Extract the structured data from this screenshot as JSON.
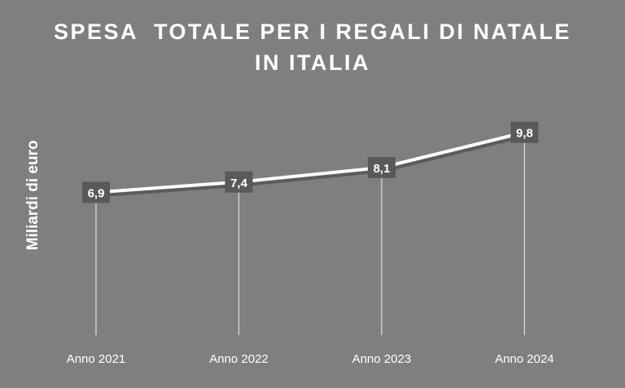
{
  "colors": {
    "background": "#7f7f7f",
    "line": "#ffffff",
    "line_shadow": "#4d4d4d",
    "label_box": "#595959",
    "text": "#ffffff",
    "drop_line": "#e0e0e0"
  },
  "chart_data": {
    "type": "line",
    "title": "SPESA  TOTALE PER I REGALI DI NATALE\nIN ITALIA",
    "xlabel": "",
    "ylabel": "Miliardi di euro",
    "categories": [
      "Anno 2021",
      "Anno 2022",
      "Anno 2023",
      "Anno 2024"
    ],
    "values": [
      6.9,
      7.4,
      8.1,
      9.8
    ],
    "data_labels": [
      "6,9",
      "7,4",
      "8,1",
      "9,8"
    ],
    "ylim": [
      0,
      10.3
    ],
    "grid": false,
    "legend": "none",
    "drop_lines": true
  }
}
